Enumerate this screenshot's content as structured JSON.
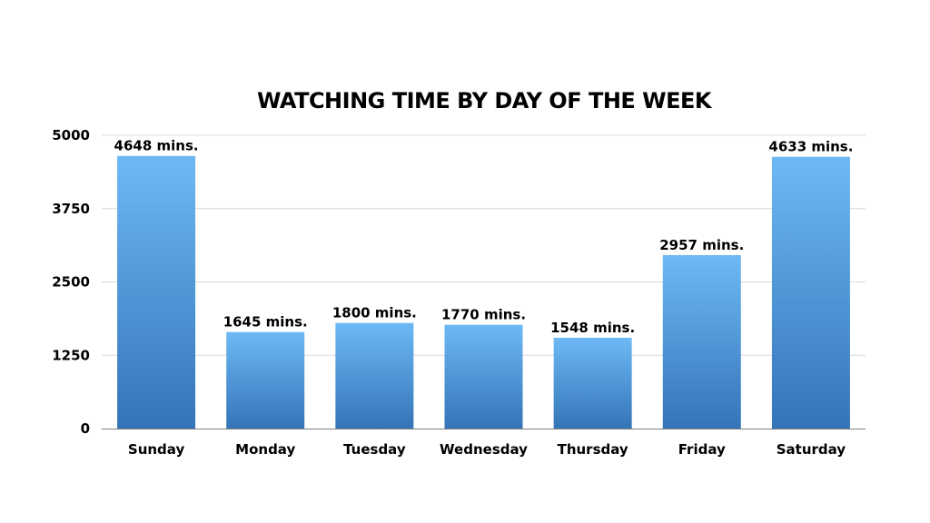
{
  "chart_data": {
    "type": "bar",
    "title": "WATCHING TIME BY DAY OF THE WEEK",
    "xlabel": "",
    "ylabel": "",
    "categories": [
      "Sunday",
      "Monday",
      "Tuesday",
      "Wednesday",
      "Thursday",
      "Friday",
      "Saturday"
    ],
    "values": [
      4648,
      1645,
      1800,
      1770,
      1548,
      2957,
      4633
    ],
    "data_labels": [
      "4648 mins.",
      "1645 mins.",
      "1800 mins.",
      "1770 mins.",
      "1548 mins.",
      "2957 mins.",
      "4633 mins."
    ],
    "ylim": [
      0,
      5000
    ],
    "yticks": [
      0,
      1250,
      2500,
      3750,
      5000
    ],
    "ytick_labels": [
      "0",
      "1250",
      "2500",
      "3750",
      "5000"
    ],
    "grid": true,
    "legend": "none",
    "colors": {
      "bar_top": "#6db9f5",
      "bar_bottom": "#3474b7",
      "grid": "#d9d9d9",
      "axis": "#7f7f7f"
    }
  }
}
